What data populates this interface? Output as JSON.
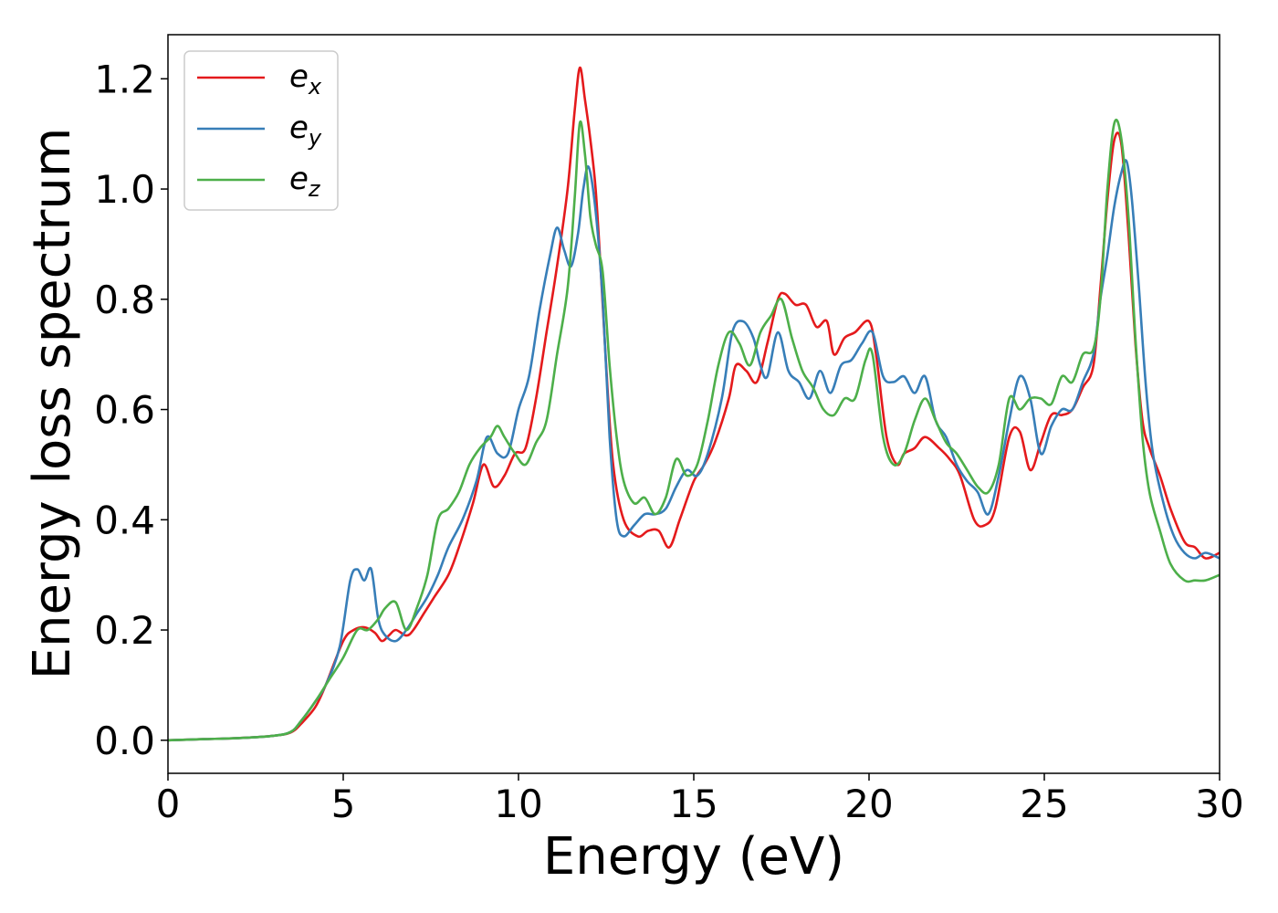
{
  "chart_data": {
    "type": "line",
    "title": "",
    "xlabel": "Energy (eV)",
    "ylabel": "Energy loss spectrum",
    "xlim": [
      0,
      30
    ],
    "ylim": [
      -0.06,
      1.28
    ],
    "xticks": [
      0,
      5,
      10,
      15,
      20,
      25,
      30
    ],
    "yticks": [
      0.0,
      0.2,
      0.4,
      0.6,
      0.8,
      1.0,
      1.2
    ],
    "grid": false,
    "legend_position": "top-left",
    "series": [
      {
        "name": "e_x",
        "label_base": "e",
        "label_sub": "x",
        "color": "#e41a1c",
        "x": [
          0,
          1,
          2,
          3,
          3.5,
          3.8,
          4.2,
          4.5,
          5,
          5.3,
          5.6,
          5.9,
          6.1,
          6.3,
          6.5,
          6.8,
          7,
          7.3,
          7.6,
          8,
          8.3,
          8.7,
          9,
          9.3,
          9.6,
          9.9,
          10.2,
          10.5,
          10.8,
          11.1,
          11.4,
          11.6,
          11.75,
          11.9,
          12.05,
          12.2,
          12.35,
          12.5,
          12.7,
          13,
          13.4,
          13.7,
          14,
          14.3,
          14.6,
          15,
          15.3,
          15.6,
          16,
          16.2,
          16.5,
          16.8,
          17.1,
          17.4,
          17.6,
          17.9,
          18.2,
          18.5,
          18.8,
          19,
          19.3,
          19.6,
          20,
          20.2,
          20.5,
          20.8,
          21,
          21.3,
          21.6,
          22,
          22.3,
          22.6,
          23,
          23.3,
          23.6,
          24,
          24.3,
          24.6,
          24.9,
          25.2,
          25.5,
          25.8,
          26.1,
          26.4,
          26.6,
          26.8,
          27,
          27.2,
          27.4,
          27.6,
          27.8,
          28,
          28.3,
          28.6,
          29,
          29.3,
          29.6,
          30
        ],
        "y": [
          0,
          0.002,
          0.004,
          0.008,
          0.014,
          0.03,
          0.06,
          0.1,
          0.18,
          0.2,
          0.205,
          0.195,
          0.18,
          0.19,
          0.2,
          0.19,
          0.2,
          0.23,
          0.26,
          0.3,
          0.35,
          0.43,
          0.5,
          0.46,
          0.48,
          0.52,
          0.53,
          0.62,
          0.74,
          0.86,
          1.0,
          1.14,
          1.22,
          1.16,
          1.09,
          1.0,
          0.85,
          0.68,
          0.5,
          0.4,
          0.37,
          0.38,
          0.38,
          0.35,
          0.4,
          0.47,
          0.5,
          0.54,
          0.62,
          0.68,
          0.67,
          0.65,
          0.72,
          0.8,
          0.81,
          0.79,
          0.79,
          0.75,
          0.76,
          0.7,
          0.73,
          0.74,
          0.76,
          0.7,
          0.55,
          0.5,
          0.52,
          0.53,
          0.55,
          0.53,
          0.51,
          0.48,
          0.4,
          0.39,
          0.42,
          0.55,
          0.56,
          0.49,
          0.54,
          0.59,
          0.59,
          0.6,
          0.64,
          0.68,
          0.82,
          0.98,
          1.09,
          1.08,
          0.92,
          0.72,
          0.58,
          0.53,
          0.48,
          0.42,
          0.36,
          0.35,
          0.33,
          0.34
        ]
      },
      {
        "name": "e_y",
        "label_base": "e",
        "label_sub": "y",
        "color": "#377eb8",
        "x": [
          0,
          1,
          2,
          3,
          3.5,
          3.8,
          4.2,
          4.5,
          4.9,
          5.2,
          5.4,
          5.6,
          5.8,
          6,
          6.2,
          6.5,
          6.8,
          7.1,
          7.4,
          7.7,
          8,
          8.4,
          8.8,
          9.1,
          9.4,
          9.7,
          10,
          10.3,
          10.6,
          10.9,
          11.1,
          11.3,
          11.5,
          11.7,
          11.85,
          12,
          12.2,
          12.4,
          12.6,
          12.8,
          13,
          13.3,
          13.6,
          13.9,
          14.2,
          14.5,
          14.8,
          15.1,
          15.4,
          15.8,
          16.1,
          16.4,
          16.7,
          16.9,
          17.1,
          17.4,
          17.7,
          18,
          18.3,
          18.6,
          18.9,
          19.2,
          19.5,
          19.8,
          20.1,
          20.4,
          20.7,
          21,
          21.3,
          21.6,
          21.9,
          22.2,
          22.5,
          22.8,
          23.1,
          23.4,
          23.7,
          24,
          24.3,
          24.6,
          24.9,
          25.2,
          25.5,
          25.8,
          26.1,
          26.4,
          26.6,
          26.8,
          27,
          27.2,
          27.35,
          27.5,
          27.7,
          27.9,
          28.1,
          28.4,
          28.7,
          29,
          29.3,
          29.6,
          30
        ],
        "y": [
          0,
          0.002,
          0.004,
          0.008,
          0.015,
          0.035,
          0.07,
          0.1,
          0.17,
          0.29,
          0.31,
          0.29,
          0.31,
          0.22,
          0.19,
          0.18,
          0.2,
          0.23,
          0.26,
          0.3,
          0.35,
          0.4,
          0.47,
          0.55,
          0.52,
          0.52,
          0.6,
          0.66,
          0.78,
          0.88,
          0.93,
          0.89,
          0.86,
          0.92,
          1.0,
          1.04,
          0.96,
          0.8,
          0.55,
          0.4,
          0.37,
          0.39,
          0.41,
          0.41,
          0.42,
          0.46,
          0.49,
          0.48,
          0.52,
          0.62,
          0.74,
          0.76,
          0.73,
          0.68,
          0.66,
          0.74,
          0.67,
          0.65,
          0.62,
          0.67,
          0.63,
          0.68,
          0.69,
          0.72,
          0.74,
          0.66,
          0.65,
          0.66,
          0.63,
          0.66,
          0.58,
          0.55,
          0.5,
          0.47,
          0.45,
          0.41,
          0.48,
          0.58,
          0.66,
          0.62,
          0.52,
          0.57,
          0.6,
          0.6,
          0.65,
          0.7,
          0.8,
          0.88,
          0.97,
          1.03,
          1.05,
          0.98,
          0.82,
          0.64,
          0.52,
          0.43,
          0.37,
          0.34,
          0.33,
          0.34,
          0.33
        ]
      },
      {
        "name": "e_z",
        "label_base": "e",
        "label_sub": "z",
        "color": "#4daf4a",
        "x": [
          0,
          1,
          2,
          3,
          3.5,
          3.8,
          4.2,
          4.6,
          5,
          5.4,
          5.7,
          6,
          6.2,
          6.5,
          6.8,
          7.1,
          7.4,
          7.7,
          8,
          8.3,
          8.6,
          8.9,
          9.2,
          9.4,
          9.6,
          9.9,
          10.2,
          10.5,
          10.8,
          11.1,
          11.4,
          11.6,
          11.75,
          11.9,
          12.05,
          12.2,
          12.4,
          12.6,
          12.8,
          13,
          13.3,
          13.6,
          13.9,
          14.2,
          14.5,
          14.8,
          15.1,
          15.4,
          15.7,
          16,
          16.3,
          16.6,
          16.9,
          17.2,
          17.5,
          17.8,
          18.1,
          18.4,
          18.7,
          19,
          19.3,
          19.6,
          19.9,
          20.1,
          20.4,
          20.7,
          21,
          21.3,
          21.6,
          21.9,
          22.2,
          22.5,
          22.8,
          23.1,
          23.4,
          23.7,
          24,
          24.3,
          24.6,
          24.9,
          25.2,
          25.5,
          25.8,
          26.1,
          26.4,
          26.6,
          26.8,
          27,
          27.2,
          27.4,
          27.6,
          27.8,
          28,
          28.3,
          28.6,
          29,
          29.3,
          29.6,
          30
        ],
        "y": [
          0,
          0.002,
          0.004,
          0.008,
          0.015,
          0.035,
          0.07,
          0.11,
          0.15,
          0.2,
          0.2,
          0.22,
          0.24,
          0.25,
          0.2,
          0.24,
          0.3,
          0.4,
          0.42,
          0.45,
          0.5,
          0.53,
          0.55,
          0.57,
          0.55,
          0.52,
          0.5,
          0.54,
          0.58,
          0.7,
          0.82,
          0.98,
          1.12,
          1.06,
          0.95,
          0.9,
          0.85,
          0.68,
          0.55,
          0.47,
          0.43,
          0.44,
          0.41,
          0.44,
          0.51,
          0.48,
          0.5,
          0.58,
          0.68,
          0.74,
          0.72,
          0.68,
          0.74,
          0.77,
          0.8,
          0.73,
          0.67,
          0.64,
          0.6,
          0.59,
          0.62,
          0.62,
          0.69,
          0.7,
          0.55,
          0.5,
          0.52,
          0.58,
          0.62,
          0.58,
          0.54,
          0.52,
          0.49,
          0.46,
          0.45,
          0.5,
          0.62,
          0.6,
          0.62,
          0.62,
          0.61,
          0.66,
          0.65,
          0.7,
          0.71,
          0.8,
          1.0,
          1.12,
          1.09,
          0.95,
          0.73,
          0.55,
          0.45,
          0.38,
          0.32,
          0.29,
          0.29,
          0.29,
          0.3
        ]
      }
    ]
  }
}
